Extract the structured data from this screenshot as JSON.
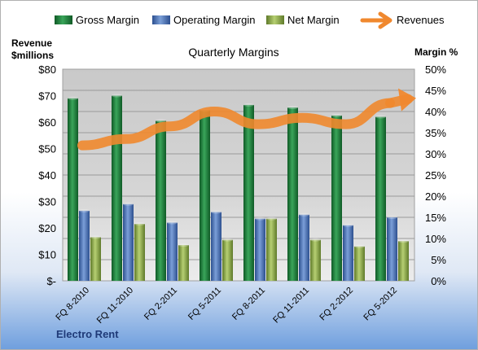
{
  "chart_data": {
    "type": "bar",
    "title": "Quarterly Margins",
    "footer": "Electro Rent",
    "categories": [
      "FQ 8-2010",
      "FQ 11-2010",
      "FQ 2-2011",
      "FQ 5-2011",
      "FQ 8-2011",
      "FQ 11-2011",
      "FQ 2-2012",
      "FQ 5-2012"
    ],
    "series": [
      {
        "name": "Gross Margin",
        "axis": "left",
        "color": "#1f7a3a",
        "values": [
          69,
          70,
          60.5,
          64.5,
          66.5,
          65.5,
          62.5,
          62
        ]
      },
      {
        "name": "Operating Margin",
        "axis": "left",
        "color": "#4f75b5",
        "values": [
          26.5,
          29,
          22,
          26,
          23.5,
          25,
          21,
          24
        ]
      },
      {
        "name": "Net Margin",
        "axis": "left",
        "color": "#8aa847",
        "values": [
          16.5,
          21.5,
          13.5,
          15.5,
          23.5,
          15.5,
          13,
          15
        ]
      },
      {
        "name": "Revenues",
        "type": "line",
        "axis": "right",
        "color": "#f0882e",
        "values": [
          32,
          33.5,
          36.5,
          40,
          37,
          38.5,
          37,
          42
        ]
      }
    ],
    "left_axis": {
      "title_line1": "Revenue",
      "title_line2": "$millions",
      "min": 0,
      "max": 80,
      "step": 10,
      "tick_labels": [
        "$-",
        "$10",
        "$20",
        "$30",
        "$40",
        "$50",
        "$60",
        "$70",
        "$80"
      ]
    },
    "right_axis": {
      "title": "Margin %",
      "min": 0,
      "max": 50,
      "step": 5,
      "tick_labels": [
        "0%",
        "5%",
        "10%",
        "15%",
        "20%",
        "25%",
        "30%",
        "35%",
        "40%",
        "45%",
        "50%"
      ]
    },
    "legend_position": "top",
    "grid": true
  }
}
